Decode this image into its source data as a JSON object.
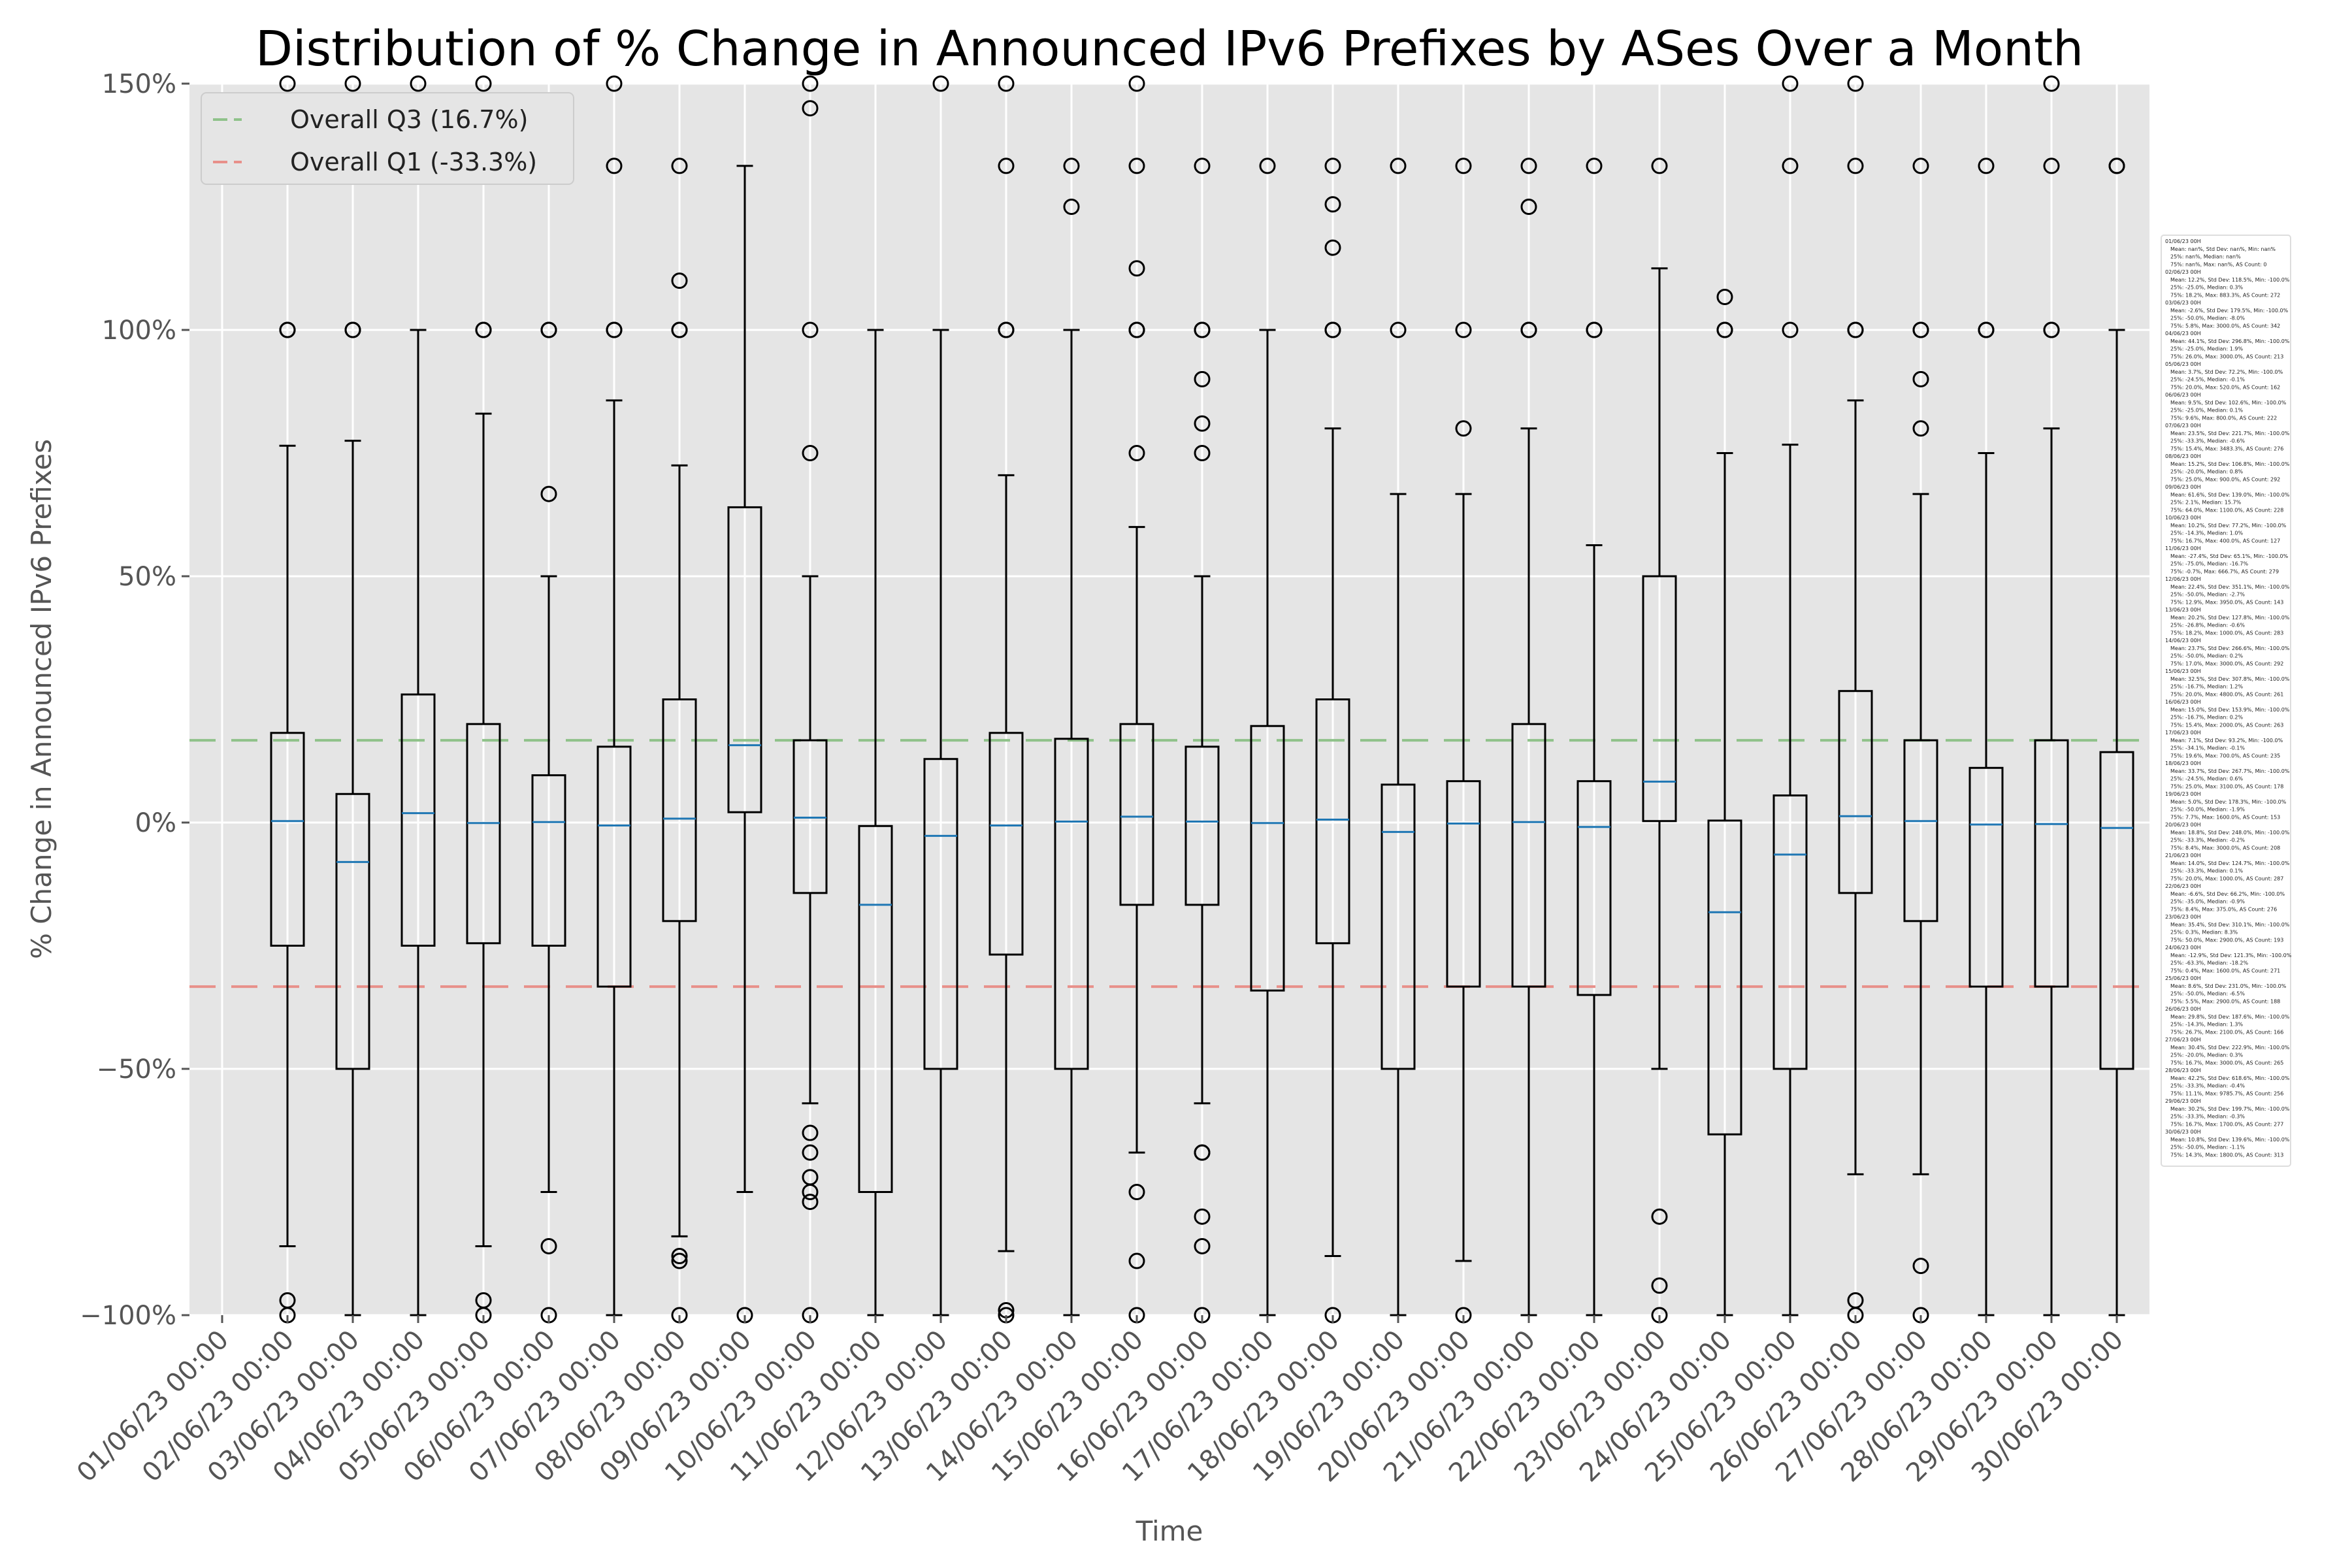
{
  "chart_data": {
    "type": "box",
    "title": "Distribution of % Change in Announced IPv6 Prefixes by ASes Over a Month",
    "xlabel": "Time",
    "ylabel": "% Change in Announced IPv6 Prefixes",
    "ylim": [
      -100,
      150
    ],
    "yticks": [
      -100,
      -50,
      0,
      50,
      100,
      150
    ],
    "ytick_labels": [
      "−100%",
      "−50%",
      "0%",
      "50%",
      "100%",
      "150%"
    ],
    "grid": true,
    "legend_position": "top-left",
    "colors": {
      "plot_background": "#e5e5e5",
      "grid": "#ffffff",
      "box_edge": "#000000",
      "median": "#1f77b4",
      "q3_line": "#8fc28a",
      "q1_line": "#e8908a"
    },
    "reference_lines": [
      {
        "name": "Overall Q3 (16.7%)",
        "value": 16.7,
        "color": "#8fc28a"
      },
      {
        "name": "Overall Q1 (-33.3%)",
        "value": -33.3,
        "color": "#e8908a"
      }
    ],
    "categories": [
      "01/06/23 00:00",
      "02/06/23 00:00",
      "03/06/23 00:00",
      "04/06/23 00:00",
      "05/06/23 00:00",
      "06/06/23 00:00",
      "07/06/23 00:00",
      "08/06/23 00:00",
      "09/06/23 00:00",
      "10/06/23 00:00",
      "11/06/23 00:00",
      "12/06/23 00:00",
      "13/06/23 00:00",
      "14/06/23 00:00",
      "15/06/23 00:00",
      "16/06/23 00:00",
      "17/06/23 00:00",
      "18/06/23 00:00",
      "19/06/23 00:00",
      "20/06/23 00:00",
      "21/06/23 00:00",
      "22/06/23 00:00",
      "23/06/23 00:00",
      "24/06/23 00:00",
      "25/06/23 00:00",
      "26/06/23 00:00",
      "27/06/23 00:00",
      "28/06/23 00:00",
      "29/06/23 00:00",
      "30/06/23 00:00"
    ],
    "boxes": [
      null,
      {
        "q1": -25,
        "median": 0.3,
        "q3": 18.2,
        "whisker_low": -86,
        "whisker_high": 76.5,
        "outliers": [
          150,
          100,
          100,
          -97,
          -100
        ]
      },
      {
        "q1": -50,
        "median": -8,
        "q3": 5.8,
        "whisker_low": -100,
        "whisker_high": 77.5,
        "outliers": [
          150,
          100,
          100
        ]
      },
      {
        "q1": -25,
        "median": 1.9,
        "q3": 26.0,
        "whisker_low": -100,
        "whisker_high": 100,
        "outliers": [
          150
        ]
      },
      {
        "q1": -24.5,
        "median": -0.1,
        "q3": 20.0,
        "whisker_low": -86,
        "whisker_high": 83,
        "outliers": [
          150,
          100,
          100,
          -97,
          -100
        ]
      },
      {
        "q1": -25,
        "median": 0.1,
        "q3": 9.6,
        "whisker_low": -75,
        "whisker_high": 50,
        "outliers": [
          100,
          100,
          66.7,
          -86,
          -100
        ]
      },
      {
        "q1": -33.3,
        "median": -0.6,
        "q3": 15.4,
        "whisker_low": -100,
        "whisker_high": 85.7,
        "outliers": [
          150,
          133.3,
          100,
          100
        ]
      },
      {
        "q1": -20,
        "median": 0.8,
        "q3": 25.0,
        "whisker_low": -84,
        "whisker_high": 72.5,
        "outliers": [
          133.3,
          110,
          100,
          100,
          -88,
          -89,
          -100
        ]
      },
      {
        "q1": 2.1,
        "median": 15.7,
        "q3": 64.0,
        "whisker_low": -75,
        "whisker_high": 133.3,
        "outliers": [
          -100
        ]
      },
      {
        "q1": -14.3,
        "median": 1.0,
        "q3": 16.7,
        "whisker_low": -57,
        "whisker_high": 50,
        "outliers": [
          150,
          145,
          100,
          75,
          -63,
          -67,
          -72,
          -75,
          -77,
          -100
        ]
      },
      {
        "q1": -75,
        "median": -16.7,
        "q3": -0.7,
        "whisker_low": -100,
        "whisker_high": 100,
        "outliers": []
      },
      {
        "q1": -50,
        "median": -2.7,
        "q3": 12.9,
        "whisker_low": -100,
        "whisker_high": 100,
        "outliers": [
          150
        ]
      },
      {
        "q1": -26.8,
        "median": -0.6,
        "q3": 18.2,
        "whisker_low": -87,
        "whisker_high": 70.5,
        "outliers": [
          150,
          133.3,
          100,
          100,
          -99,
          -100
        ]
      },
      {
        "q1": -50,
        "median": 0.2,
        "q3": 17.0,
        "whisker_low": -100,
        "whisker_high": 100,
        "outliers": [
          133.3,
          125
        ]
      },
      {
        "q1": -16.7,
        "median": 1.2,
        "q3": 20.0,
        "whisker_low": -67,
        "whisker_high": 60,
        "outliers": [
          150,
          133.3,
          112.5,
          100,
          100,
          75,
          -75,
          -89,
          -100
        ]
      },
      {
        "q1": -16.7,
        "median": 0.2,
        "q3": 15.4,
        "whisker_low": -57,
        "whisker_high": 50,
        "outliers": [
          133.3,
          100,
          100,
          90,
          81,
          75,
          -67,
          -67,
          -80,
          -86,
          -100
        ]
      },
      {
        "q1": -34.1,
        "median": -0.1,
        "q3": 19.6,
        "whisker_low": -100,
        "whisker_high": 100,
        "outliers": [
          133.3
        ]
      },
      {
        "q1": -24.5,
        "median": 0.6,
        "q3": 25.0,
        "whisker_low": -88,
        "whisker_high": 80,
        "outliers": [
          133.3,
          125.5,
          116.7,
          100,
          100,
          -100
        ]
      },
      {
        "q1": -50,
        "median": -1.9,
        "q3": 7.7,
        "whisker_low": -100,
        "whisker_high": 66.7,
        "outliers": [
          133.3,
          100
        ]
      },
      {
        "q1": -33.3,
        "median": -0.2,
        "q3": 8.4,
        "whisker_low": -89,
        "whisker_high": 66.7,
        "outliers": [
          133.3,
          100,
          80,
          -100
        ]
      },
      {
        "q1": -33.3,
        "median": 0.1,
        "q3": 20.0,
        "whisker_low": -100,
        "whisker_high": 80,
        "outliers": [
          133.3,
          125,
          100,
          100
        ]
      },
      {
        "q1": -35,
        "median": -0.9,
        "q3": 8.4,
        "whisker_low": -100,
        "whisker_high": 56.3,
        "outliers": [
          133.3,
          100,
          100
        ]
      },
      {
        "q1": 0.3,
        "median": 8.3,
        "q3": 50.0,
        "whisker_low": -50,
        "whisker_high": 112.5,
        "outliers": [
          133.3,
          -80,
          -94,
          -100
        ]
      },
      {
        "q1": -63.3,
        "median": -18.2,
        "q3": 0.4,
        "whisker_low": -100,
        "whisker_high": 75,
        "outliers": [
          106.7,
          100,
          100
        ]
      },
      {
        "q1": -50,
        "median": -6.5,
        "q3": 5.5,
        "whisker_low": -100,
        "whisker_high": 76.7,
        "outliers": [
          150,
          133.3,
          100
        ]
      },
      {
        "q1": -14.3,
        "median": 1.3,
        "q3": 26.7,
        "whisker_low": -71.4,
        "whisker_high": 85.7,
        "outliers": [
          150,
          133.3,
          100,
          100,
          -97,
          -100
        ]
      },
      {
        "q1": -20,
        "median": 0.3,
        "q3": 16.7,
        "whisker_low": -71.4,
        "whisker_high": 66.7,
        "outliers": [
          133.3,
          100,
          100,
          90,
          80,
          -90,
          -100
        ]
      },
      {
        "q1": -33.3,
        "median": -0.4,
        "q3": 11.1,
        "whisker_low": -100,
        "whisker_high": 75,
        "outliers": [
          133.3,
          100,
          100
        ]
      },
      {
        "q1": -33.3,
        "median": -0.3,
        "q3": 16.7,
        "whisker_low": -100,
        "whisker_high": 80,
        "outliers": [
          150,
          133.3,
          100,
          100
        ]
      },
      {
        "q1": -50,
        "median": -1.1,
        "q3": 14.3,
        "whisker_low": -100,
        "whisker_high": 100,
        "outliers": [
          133.3,
          133.3
        ]
      }
    ],
    "stats_annotation": [
      "01/06/23 00H",
      "Mean: nan%, Std Dev: nan%, Min: nan%",
      "25%: nan%, Median: nan%",
      "75%: nan%, Max: nan%, AS Count: 0",
      "02/06/23 00H",
      "Mean: 12.2%, Std Dev: 118.5%, Min: -100.0%",
      "25%: -25.0%, Median: 0.3%",
      "75%: 18.2%, Max: 883.3%, AS Count: 272",
      "03/06/23 00H",
      "Mean: -2.6%, Std Dev: 179.5%, Min: -100.0%",
      "25%: -50.0%, Median: -8.0%",
      "75%: 5.8%, Max: 3000.0%, AS Count: 342",
      "04/06/23 00H",
      "Mean: 44.1%, Std Dev: 296.8%, Min: -100.0%",
      "25%: -25.0%, Median: 1.9%",
      "75%: 26.0%, Max: 3000.0%, AS Count: 213",
      "05/06/23 00H",
      "Mean: 3.7%, Std Dev: 72.2%, Min: -100.0%",
      "25%: -24.5%, Median: -0.1%",
      "75%: 20.0%, Max: 520.0%, AS Count: 162",
      "06/06/23 00H",
      "Mean: 9.5%, Std Dev: 102.6%, Min: -100.0%",
      "25%: -25.0%, Median: 0.1%",
      "75%: 9.6%, Max: 800.0%, AS Count: 222",
      "07/06/23 00H",
      "Mean: 23.5%, Std Dev: 221.7%, Min: -100.0%",
      "25%: -33.3%, Median: -0.6%",
      "75%: 15.4%, Max: 3483.3%, AS Count: 276",
      "08/06/23 00H",
      "Mean: 15.2%, Std Dev: 106.8%, Min: -100.0%",
      "25%: -20.0%, Median: 0.8%",
      "75%: 25.0%, Max: 900.0%, AS Count: 292",
      "09/06/23 00H",
      "Mean: 61.6%, Std Dev: 139.0%, Min: -100.0%",
      "25%: 2.1%, Median: 15.7%",
      "75%: 64.0%, Max: 1100.0%, AS Count: 228",
      "10/06/23 00H",
      "Mean: 10.2%, Std Dev: 77.2%, Min: -100.0%",
      "25%: -14.3%, Median: 1.0%",
      "75%: 16.7%, Max: 400.0%, AS Count: 127",
      "11/06/23 00H",
      "Mean: -27.4%, Std Dev: 65.1%, Min: -100.0%",
      "25%: -75.0%, Median: -16.7%",
      "75%: -0.7%, Max: 666.7%, AS Count: 279",
      "12/06/23 00H",
      "Mean: 22.4%, Std Dev: 351.1%, Min: -100.0%",
      "25%: -50.0%, Median: -2.7%",
      "75%: 12.9%, Max: 3950.0%, AS Count: 143",
      "13/06/23 00H",
      "Mean: 20.2%, Std Dev: 127.8%, Min: -100.0%",
      "25%: -26.8%, Median: -0.6%",
      "75%: 18.2%, Max: 1000.0%, AS Count: 283",
      "14/06/23 00H",
      "Mean: 23.7%, Std Dev: 266.6%, Min: -100.0%",
      "25%: -50.0%, Median: 0.2%",
      "75%: 17.0%, Max: 3000.0%, AS Count: 292",
      "15/06/23 00H",
      "Mean: 32.5%, Std Dev: 307.8%, Min: -100.0%",
      "25%: -16.7%, Median: 1.2%",
      "75%: 20.0%, Max: 4800.0%, AS Count: 261",
      "16/06/23 00H",
      "Mean: 15.0%, Std Dev: 153.9%, Min: -100.0%",
      "25%: -16.7%, Median: 0.2%",
      "75%: 15.4%, Max: 2000.0%, AS Count: 263",
      "17/06/23 00H",
      "Mean: 7.1%, Std Dev: 93.2%, Min: -100.0%",
      "25%: -34.1%, Median: -0.1%",
      "75%: 19.6%, Max: 700.0%, AS Count: 235",
      "18/06/23 00H",
      "Mean: 33.7%, Std Dev: 267.7%, Min: -100.0%",
      "25%: -24.5%, Median: 0.6%",
      "75%: 25.0%, Max: 3100.0%, AS Count: 178",
      "19/06/23 00H",
      "Mean: 5.0%, Std Dev: 178.3%, Min: -100.0%",
      "25%: -50.0%, Median: -1.9%",
      "75%: 7.7%, Max: 1600.0%, AS Count: 153",
      "20/06/23 00H",
      "Mean: 18.8%, Std Dev: 248.0%, Min: -100.0%",
      "25%: -33.3%, Median: -0.2%",
      "75%: 8.4%, Max: 3000.0%, AS Count: 208",
      "21/06/23 00H",
      "Mean: 14.0%, Std Dev: 124.7%, Min: -100.0%",
      "25%: -33.3%, Median: 0.1%",
      "75%: 20.0%, Max: 1000.0%, AS Count: 287",
      "22/06/23 00H",
      "Mean: -6.6%, Std Dev: 66.2%, Min: -100.0%",
      "25%: -35.0%, Median: -0.9%",
      "75%: 8.4%, Max: 375.0%, AS Count: 276",
      "23/06/23 00H",
      "Mean: 35.4%, Std Dev: 310.1%, Min: -100.0%",
      "25%: 0.3%, Median: 8.3%",
      "75%: 50.0%, Max: 2900.0%, AS Count: 193",
      "24/06/23 00H",
      "Mean: -12.9%, Std Dev: 121.3%, Min: -100.0%",
      "25%: -63.3%, Median: -18.2%",
      "75%: 0.4%, Max: 1600.0%, AS Count: 271",
      "25/06/23 00H",
      "Mean: 8.6%, Std Dev: 231.0%, Min: -100.0%",
      "25%: -50.0%, Median: -6.5%",
      "75%: 5.5%, Max: 2900.0%, AS Count: 188",
      "26/06/23 00H",
      "Mean: 29.8%, Std Dev: 187.6%, Min: -100.0%",
      "25%: -14.3%, Median: 1.3%",
      "75%: 26.7%, Max: 2100.0%, AS Count: 166",
      "27/06/23 00H",
      "Mean: 30.4%, Std Dev: 222.9%, Min: -100.0%",
      "25%: -20.0%, Median: 0.3%",
      "75%: 16.7%, Max: 3000.0%, AS Count: 265",
      "28/06/23 00H",
      "Mean: 42.2%, Std Dev: 618.6%, Min: -100.0%",
      "25%: -33.3%, Median: -0.4%",
      "75%: 11.1%, Max: 9785.7%, AS Count: 256",
      "29/06/23 00H",
      "Mean: 30.2%, Std Dev: 199.7%, Min: -100.0%",
      "25%: -33.3%, Median: -0.3%",
      "75%: 16.7%, Max: 1700.0%, AS Count: 277",
      "30/06/23 00H",
      "Mean: 10.8%, Std Dev: 139.6%, Min: -100.0%",
      "25%: -50.0%, Median: -1.1%",
      "75%: 14.3%, Max: 1800.0%, AS Count: 313"
    ]
  }
}
